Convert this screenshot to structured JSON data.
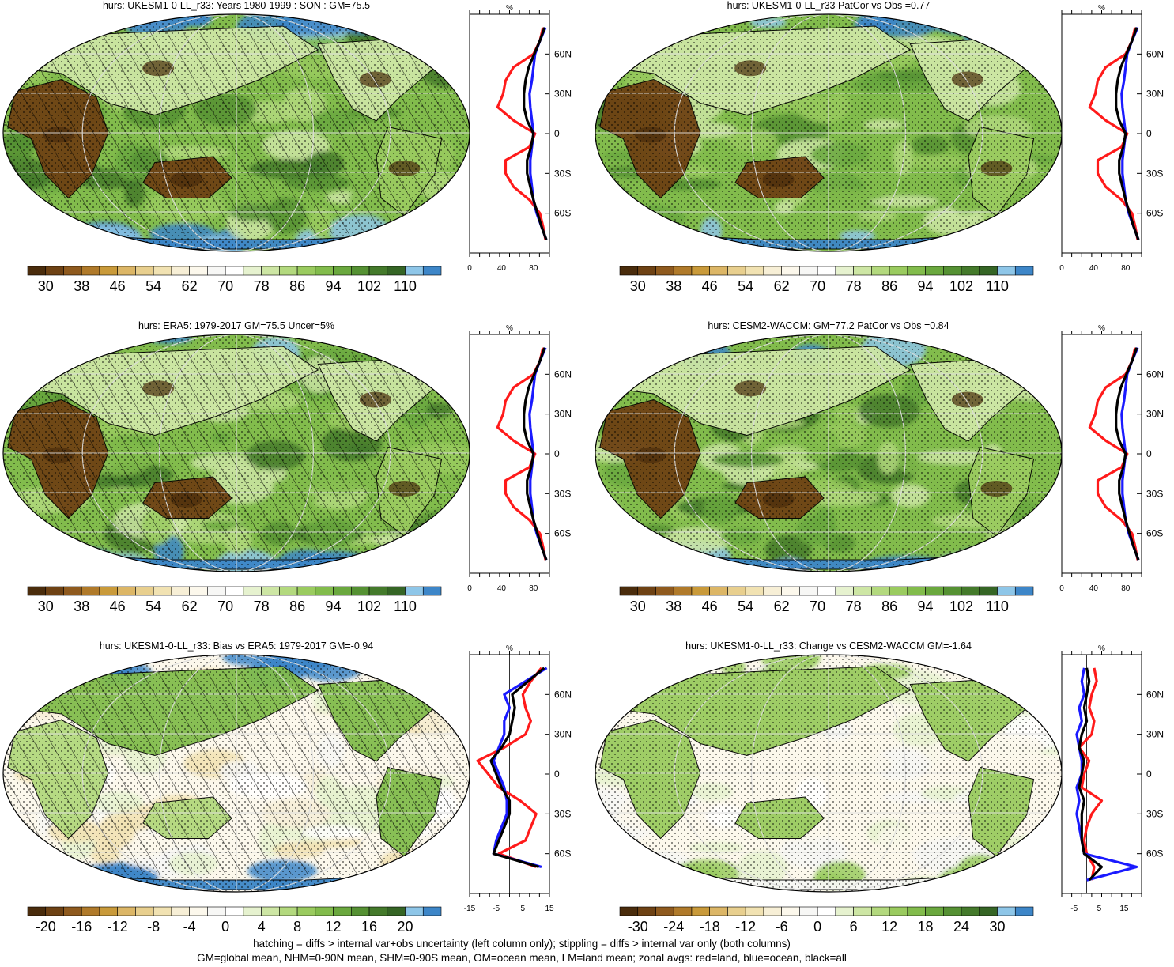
{
  "panels": [
    {
      "id": "p1",
      "title": "hurs: UKESM1-0-LL_r33: Years 1980-1999 : SON : GM=75.5",
      "kind": "abs",
      "hatch": true,
      "stipple": true,
      "seed": 11
    },
    {
      "id": "p2",
      "title": "hurs: UKESM1-0-LL_r33 PatCor vs Obs =0.77",
      "kind": "abs",
      "hatch": false,
      "stipple": true,
      "seed": 23
    },
    {
      "id": "p3",
      "title": "hurs: ERA5: 1979-2017 GM=75.5 Uncer=5%",
      "kind": "abs",
      "hatch": true,
      "stipple": true,
      "seed": 37
    },
    {
      "id": "p4",
      "title": "hurs: CESM2-WACCM: GM=77.2 PatCor vs Obs =0.84",
      "kind": "abs",
      "hatch": false,
      "stipple": true,
      "seed": 41
    },
    {
      "id": "p5",
      "title": "hurs: UKESM1-0-LL_r33: Bias vs ERA5: 1979-2017  GM=-0.94",
      "kind": "bias",
      "hatch": true,
      "stipple": true,
      "seed": 53
    },
    {
      "id": "p6",
      "title": "hurs: UKESM1-0-LL_r33: Change vs CESM2-WACCM GM=-1.64",
      "kind": "change",
      "hatch": false,
      "stipple": true,
      "seed": 67
    }
  ],
  "colorbars": {
    "abs": {
      "labels": [
        "30",
        "38",
        "46",
        "54",
        "62",
        "70",
        "78",
        "86",
        "94",
        "102",
        "110"
      ],
      "colors": [
        "#4a2c0c",
        "#6e4214",
        "#8f5a1e",
        "#b07a2a",
        "#c99a3a",
        "#dcb666",
        "#e8cf8e",
        "#f1e2b2",
        "#f7efd6",
        "#fcf8ec",
        "#f7f7f5",
        "#ffffff",
        "#e6f2cf",
        "#cde6a4",
        "#b3d97e",
        "#9acb5f",
        "#82bc4c",
        "#6aa83e",
        "#559133",
        "#447a2b",
        "#356525",
        "#8ec6e8",
        "#3d86c8"
      ]
    },
    "bias": {
      "labels": [
        "-20",
        "-16",
        "-12",
        "-8",
        "-4",
        "0",
        "4",
        "8",
        "12",
        "16",
        "20"
      ],
      "colors": [
        "#4a2c0c",
        "#6e4214",
        "#8f5a1e",
        "#b07a2a",
        "#c99a3a",
        "#dcb666",
        "#e8cf8e",
        "#f1e2b2",
        "#f7efd6",
        "#fcf8ec",
        "#f7f7f5",
        "#ffffff",
        "#e6f2cf",
        "#cde6a4",
        "#b3d97e",
        "#9acb5f",
        "#82bc4c",
        "#6aa83e",
        "#559133",
        "#447a2b",
        "#356525",
        "#8ec6e8",
        "#3d86c8"
      ]
    },
    "change": {
      "labels": [
        "-30",
        "-24",
        "-18",
        "-12",
        "-6",
        "0",
        "6",
        "12",
        "18",
        "24",
        "30"
      ],
      "colors": [
        "#4a2c0c",
        "#6e4214",
        "#8f5a1e",
        "#b07a2a",
        "#c99a3a",
        "#dcb666",
        "#e8cf8e",
        "#f1e2b2",
        "#f7efd6",
        "#fcf8ec",
        "#f7f7f5",
        "#ffffff",
        "#e6f2cf",
        "#cde6a4",
        "#b3d97e",
        "#9acb5f",
        "#82bc4c",
        "#6aa83e",
        "#559133",
        "#447a2b",
        "#356525",
        "#8ec6e8",
        "#3d86c8"
      ]
    }
  },
  "zonal": {
    "unit": "%",
    "lat_labels": [
      "60N",
      "30N",
      "0",
      "30S",
      "60S"
    ],
    "xticks_abs": [
      "0",
      "40",
      "80"
    ],
    "xticks_bias": [
      "-15",
      "-5",
      "5",
      "15"
    ],
    "xticks_change": [
      "-5",
      "5",
      "15"
    ],
    "series": [
      {
        "key": "land",
        "color": "#ff1a1a"
      },
      {
        "key": "ocean",
        "color": "#1a1aff"
      },
      {
        "key": "all",
        "color": "#000000"
      }
    ]
  },
  "footer": {
    "line1": "hatching = diffs > internal var+obs uncertainty (left column only); stippling = diffs > internal var only (both columns)",
    "line2": "GM=global mean, NHM=0-90N mean, SHM=0-90S mean, OM=ocean mean, LM=land mean; zonal avgs: red=land, blue=ocean, black=all"
  },
  "chart_data": [
    {
      "type": "heatmap",
      "title": "hurs: UKESM1-0-LL_r33: Years 1980-1999 : SON : GM=75.5",
      "colorbar_ticks": [
        30,
        38,
        46,
        54,
        62,
        70,
        78,
        86,
        94,
        102,
        110
      ]
    },
    {
      "type": "line",
      "ylabel": "",
      "xlabel": "%",
      "xticks": [
        0,
        40,
        80
      ],
      "ylim": [
        -90,
        90
      ],
      "series": [
        {
          "lat": [
            80,
            70,
            60,
            50,
            40,
            30,
            20,
            10,
            0,
            -10,
            -20,
            -30,
            -40,
            -50,
            -60,
            -70,
            -80
          ],
          "values": [
            92,
            88,
            80,
            55,
            45,
            42,
            35,
            55,
            82,
            75,
            45,
            45,
            55,
            75,
            88,
            92,
            95
          ]
        },
        {
          "lat": [
            80,
            70,
            60,
            50,
            40,
            30,
            20,
            10,
            0,
            -10,
            -20,
            -30,
            -40,
            -50,
            -60,
            -70,
            -80
          ],
          "values": [
            95,
            88,
            82,
            80,
            78,
            75,
            76,
            78,
            80,
            78,
            76,
            76,
            78,
            80,
            84,
            90,
            96
          ]
        },
        {
          "lat": [
            80,
            70,
            60,
            50,
            40,
            30,
            20,
            10,
            0,
            -10,
            -20,
            -30,
            -40,
            -50,
            -60,
            -70,
            -80
          ],
          "values": [
            94,
            88,
            81,
            74,
            70,
            68,
            68,
            72,
            80,
            77,
            72,
            72,
            76,
            80,
            85,
            90,
            96
          ]
        }
      ]
    },
    {
      "type": "heatmap",
      "title": "hurs: UKESM1-0-LL_r33 PatCor vs Obs =0.77",
      "colorbar_ticks": [
        30,
        38,
        46,
        54,
        62,
        70,
        78,
        86,
        94,
        102,
        110
      ]
    },
    {
      "type": "heatmap",
      "title": "hurs: ERA5: 1979-2017 GM=75.5 Uncer=5%",
      "colorbar_ticks": [
        30,
        38,
        46,
        54,
        62,
        70,
        78,
        86,
        94,
        102,
        110
      ]
    },
    {
      "type": "heatmap",
      "title": "hurs: CESM2-WACCM: GM=77.2 PatCor vs Obs =0.84",
      "colorbar_ticks": [
        30,
        38,
        46,
        54,
        62,
        70,
        78,
        86,
        94,
        102,
        110
      ]
    },
    {
      "type": "heatmap",
      "title": "hurs: UKESM1-0-LL_r33: Bias vs ERA5: 1979-2017  GM=-0.94",
      "colorbar_ticks": [
        -20,
        -16,
        -12,
        -8,
        -4,
        0,
        4,
        8,
        12,
        16,
        20
      ]
    },
    {
      "type": "line",
      "xlabel": "%",
      "xticks": [
        -15,
        -5,
        5,
        15
      ],
      "ylim": [
        -90,
        90
      ],
      "series": [
        {
          "lat": [
            80,
            70,
            60,
            50,
            40,
            30,
            20,
            10,
            0,
            -10,
            -20,
            -30,
            -40,
            -50,
            -60,
            -70
          ],
          "values": [
            12,
            8,
            5,
            6,
            8,
            6,
            -2,
            -12,
            -8,
            -4,
            4,
            10,
            8,
            6,
            -4,
            10
          ]
        },
        {
          "lat": [
            80,
            70,
            60,
            50,
            40,
            30,
            20,
            10,
            0,
            -10,
            -20,
            -30,
            -40,
            -50,
            -60,
            -70
          ],
          "values": [
            14,
            6,
            -2,
            0,
            -2,
            -2,
            -4,
            -6,
            -4,
            -2,
            -1,
            -1,
            -3,
            -5,
            -6,
            12
          ]
        },
        {
          "lat": [
            80,
            70,
            60,
            50,
            40,
            30,
            20,
            10,
            0,
            -10,
            -20,
            -30,
            -40,
            -50,
            -60,
            -70
          ],
          "values": [
            13,
            7,
            1,
            2,
            1,
            0,
            -3,
            -7,
            -5,
            -3,
            0,
            0,
            -2,
            -4,
            -6,
            11
          ]
        }
      ]
    },
    {
      "type": "heatmap",
      "title": "hurs: UKESM1-0-LL_r33: Change vs CESM2-WACCM GM=-1.64",
      "colorbar_ticks": [
        -30,
        -24,
        -18,
        -12,
        -6,
        0,
        6,
        12,
        18,
        24,
        30
      ]
    },
    {
      "type": "line",
      "xlabel": "%",
      "xticks": [
        -5,
        5,
        15
      ],
      "ylim": [
        -90,
        90
      ],
      "series": [
        {
          "lat": [
            80,
            70,
            60,
            50,
            40,
            30,
            20,
            10,
            0,
            -10,
            -20,
            -30,
            -40,
            -50,
            -60,
            -70,
            -80
          ],
          "values": [
            3,
            4,
            2,
            1,
            3,
            2,
            -3,
            1,
            -1,
            -2,
            6,
            2,
            0,
            -1,
            0,
            3,
            2
          ]
        },
        {
          "lat": [
            80,
            70,
            60,
            50,
            40,
            30,
            20,
            10,
            0,
            -10,
            -20,
            -30,
            -40,
            -50,
            -60,
            -70,
            -80
          ],
          "values": [
            -1,
            -2,
            -1,
            -3,
            -2,
            -4,
            -3,
            -2,
            -2,
            -4,
            -3,
            -4,
            -3,
            -2,
            -1,
            20,
            0
          ]
        },
        {
          "lat": [
            80,
            70,
            60,
            50,
            40,
            30,
            20,
            10,
            0,
            -10,
            -20,
            -30,
            -40,
            -50,
            -60,
            -70,
            -80
          ],
          "values": [
            0,
            1,
            0,
            -1,
            0,
            -2,
            -3,
            -1,
            -2,
            -3,
            -1,
            -2,
            -2,
            -2,
            -1,
            6,
            1
          ]
        }
      ]
    }
  ]
}
